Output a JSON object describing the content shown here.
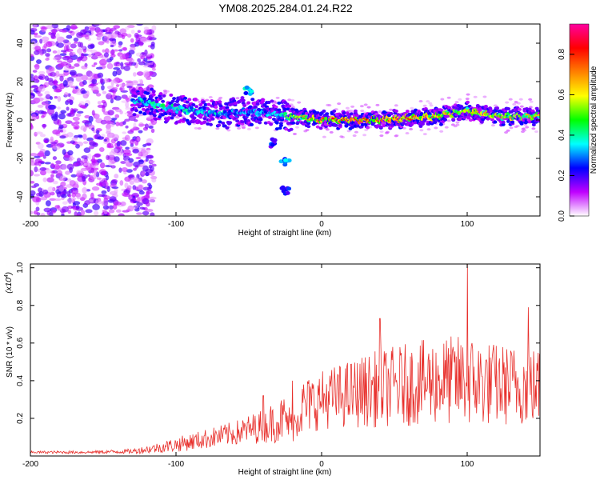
{
  "title": "YM08.2025.284.01.24.R22",
  "colors": {
    "snr_line": "#e8302c",
    "axis": "#000000",
    "frame": "#000000"
  },
  "chart_data": [
    {
      "type": "heatmap",
      "name": "spectrogram",
      "xlabel": "Height of straight line (km)",
      "ylabel": "Frequency (Hz)",
      "xlim": [
        -200,
        150
      ],
      "ylim": [
        -50,
        50
      ],
      "xticks": [
        -200,
        -100,
        0,
        100
      ],
      "yticks": [
        -40,
        -20,
        0,
        20,
        40
      ],
      "colorbar": {
        "label": "Normalized spectral amplitude",
        "range": [
          0,
          0.95
        ],
        "ticks": [
          0,
          0.2,
          0.4,
          0.6,
          0.8
        ],
        "colormap": [
          "#ffffff",
          "#c000ff",
          "#0000ff",
          "#00ffff",
          "#00ff00",
          "#ffff00",
          "#ff8000",
          "#ff0000",
          "#ff00a0"
        ]
      },
      "ridge": [
        {
          "x": -125,
          "freq": 10,
          "amp": 0.45
        },
        {
          "x": -110,
          "freq": 7,
          "amp": 0.55
        },
        {
          "x": -90,
          "freq": 5,
          "amp": 0.45
        },
        {
          "x": -70,
          "freq": 3,
          "amp": 0.45
        },
        {
          "x": -55,
          "freq": 4,
          "amp": 0.4
        },
        {
          "x": -40,
          "freq": 4,
          "amp": 0.4
        },
        {
          "x": -25,
          "freq": 2,
          "amp": 0.5
        },
        {
          "x": -10,
          "freq": 1,
          "amp": 0.7
        },
        {
          "x": 0,
          "freq": 0,
          "amp": 0.8
        },
        {
          "x": 20,
          "freq": 0,
          "amp": 0.85
        },
        {
          "x": 40,
          "freq": 0,
          "amp": 0.8
        },
        {
          "x": 60,
          "freq": 1,
          "amp": 0.8
        },
        {
          "x": 80,
          "freq": 2,
          "amp": 0.75
        },
        {
          "x": 100,
          "freq": 5,
          "amp": 0.65
        },
        {
          "x": 120,
          "freq": 2,
          "amp": 0.7
        },
        {
          "x": 150,
          "freq": 2,
          "amp": 0.65
        }
      ],
      "features": [
        {
          "x": -50,
          "freq": 15,
          "amp": 0.4
        },
        {
          "x": -35,
          "freq": -12,
          "amp": 0.3
        },
        {
          "x": -25,
          "freq": -22,
          "amp": 0.45
        },
        {
          "x": -25,
          "freq": -37,
          "amp": 0.3
        }
      ],
      "noise_region": {
        "x_from": -200,
        "x_to": -115,
        "freq_from": -50,
        "freq_to": 50,
        "amp": 0.2
      }
    },
    {
      "type": "line",
      "name": "snr",
      "xlabel": "Height of straight line (km)",
      "ylabel": "SNR (10 * v/v)",
      "yscale_note": "(x10",
      "yscale_exp": "4",
      "xlim": [
        -200,
        150
      ],
      "ylim": [
        0,
        1.02
      ],
      "xticks": [
        -200,
        -100,
        0,
        100
      ],
      "yticks": [
        0.2,
        0.4,
        0.6,
        0.8,
        1.0
      ],
      "envelope": {
        "x": [
          -200,
          -160,
          -130,
          -115,
          -100,
          -80,
          -60,
          -40,
          -25,
          -20,
          -15,
          0,
          20,
          40,
          60,
          80,
          100,
          120,
          150
        ],
        "mean": [
          0.02,
          0.02,
          0.025,
          0.04,
          0.06,
          0.09,
          0.12,
          0.16,
          0.2,
          0.15,
          0.25,
          0.3,
          0.33,
          0.36,
          0.38,
          0.4,
          0.4,
          0.38,
          0.37
        ],
        "amp": [
          0.005,
          0.006,
          0.01,
          0.02,
          0.03,
          0.04,
          0.05,
          0.07,
          0.1,
          0.06,
          0.12,
          0.12,
          0.14,
          0.16,
          0.17,
          0.18,
          0.19,
          0.17,
          0.16
        ]
      },
      "peaks": [
        {
          "x": 100,
          "y": 1.02
        },
        {
          "x": 40,
          "y": 0.73
        },
        {
          "x": 142,
          "y": 0.79
        },
        {
          "x": -20,
          "y": 0.4
        },
        {
          "x": -40,
          "y": 0.32
        }
      ]
    }
  ]
}
